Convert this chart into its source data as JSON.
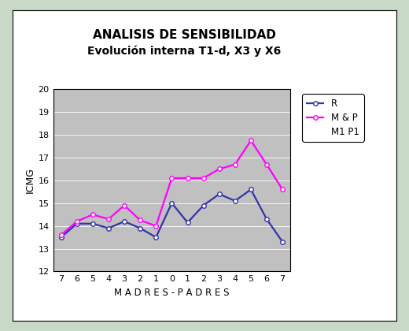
{
  "title_line1": "ANALISIS DE SENSIBILIDAD",
  "title_line2": "Evolución interna T1-d, X3 y X6",
  "xlabel": "M A D R E S - P A D R E S",
  "ylabel": "ICMG",
  "x_tick_labels": [
    "7",
    "6",
    "5",
    "4",
    "3",
    "2",
    "1",
    "0",
    "1",
    "2",
    "3",
    "4",
    "5",
    "6",
    "7"
  ],
  "x_positions": [
    0,
    1,
    2,
    3,
    4,
    5,
    6,
    7,
    8,
    9,
    10,
    11,
    12,
    13,
    14
  ],
  "R_values": [
    13.5,
    14.1,
    14.1,
    13.9,
    14.2,
    13.9,
    13.5,
    15.0,
    14.15,
    14.9,
    15.4,
    15.1,
    15.6,
    14.3,
    13.3
  ],
  "MP_values": [
    13.6,
    14.2,
    14.5,
    14.3,
    14.9,
    14.25,
    14.0,
    16.1,
    16.1,
    16.1,
    16.5,
    16.7,
    17.75,
    16.7,
    15.6
  ],
  "R_color": "#3333aa",
  "MP_color": "#ff00ff",
  "ylim": [
    12,
    20
  ],
  "yticks": [
    12,
    13,
    14,
    15,
    16,
    17,
    18,
    19,
    20
  ],
  "bg_color": "#c0c0c0",
  "outer_bg": "#c8d9c8",
  "inner_bg": "#ffffff",
  "border_color": "#c8d9c8",
  "legend_labels": [
    "R",
    "M & P",
    "M1 P1"
  ],
  "marker": "o",
  "markersize": 4,
  "linewidth": 1.6,
  "title_fontsize": 11,
  "subtitle_fontsize": 10
}
